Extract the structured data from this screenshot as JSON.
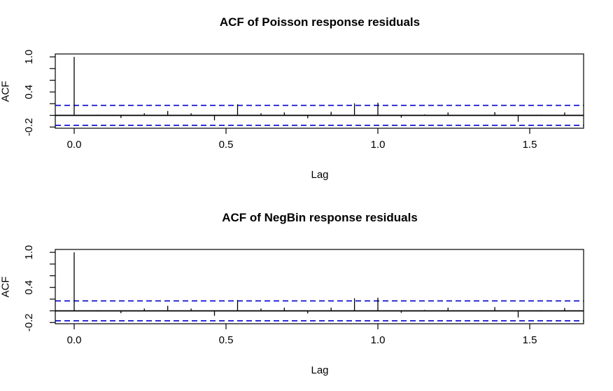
{
  "colors": {
    "foreground": "#000000",
    "conf_band": "#0000cc",
    "background": "#ffffff"
  },
  "chart_data": [
    {
      "type": "bar",
      "title": "ACF of Poisson response residuals",
      "xlabel": "Lag",
      "ylabel": "ACF",
      "xlim": [
        -0.065,
        1.68
      ],
      "ylim": [
        -0.22,
        1.05
      ],
      "grid": false,
      "conf_band": 0.17,
      "conf_band_style": "blue-dashed",
      "zero_line": 0,
      "x_ticks": [
        {
          "v": 0.0,
          "label": "0.0"
        },
        {
          "v": 0.5,
          "label": "0.5"
        },
        {
          "v": 1.0,
          "label": "1.0"
        },
        {
          "v": 1.5,
          "label": "1.5"
        }
      ],
      "y_ticks": [
        {
          "v": 1.0,
          "label": "1.0"
        },
        {
          "v": 0.8,
          "label": ""
        },
        {
          "v": 0.6,
          "label": ""
        },
        {
          "v": 0.4,
          "label": "0.4"
        },
        {
          "v": 0.2,
          "label": ""
        },
        {
          "v": 0.0,
          "label": ""
        },
        {
          "v": -0.2,
          "label": "-0.2"
        }
      ],
      "lags": [
        0,
        0.077,
        0.154,
        0.231,
        0.308,
        0.385,
        0.462,
        0.538,
        0.615,
        0.692,
        0.769,
        0.846,
        0.923,
        1.0,
        1.077,
        1.154,
        1.231,
        1.308,
        1.385,
        1.462,
        1.538,
        1.615
      ],
      "values": [
        1.0,
        0.01,
        -0.045,
        0.035,
        0.075,
        0.035,
        -0.085,
        0.19,
        0.035,
        0.05,
        -0.05,
        0.06,
        0.205,
        0.215,
        -0.04,
        0.015,
        0.05,
        0.005,
        0.055,
        -0.11,
        0.01,
        0.05
      ]
    },
    {
      "type": "bar",
      "title": "ACF of NegBin response residuals",
      "xlabel": "Lag",
      "ylabel": "ACF",
      "xlim": [
        -0.065,
        1.68
      ],
      "ylim": [
        -0.22,
        1.05
      ],
      "grid": false,
      "conf_band": 0.17,
      "conf_band_style": "blue-dashed",
      "zero_line": 0,
      "x_ticks": [
        {
          "v": 0.0,
          "label": "0.0"
        },
        {
          "v": 0.5,
          "label": "0.5"
        },
        {
          "v": 1.0,
          "label": "1.0"
        },
        {
          "v": 1.5,
          "label": "1.5"
        }
      ],
      "y_ticks": [
        {
          "v": 1.0,
          "label": "1.0"
        },
        {
          "v": 0.8,
          "label": ""
        },
        {
          "v": 0.6,
          "label": ""
        },
        {
          "v": 0.4,
          "label": "0.4"
        },
        {
          "v": 0.2,
          "label": ""
        },
        {
          "v": 0.0,
          "label": ""
        },
        {
          "v": -0.2,
          "label": "-0.2"
        }
      ],
      "lags": [
        0,
        0.077,
        0.154,
        0.231,
        0.308,
        0.385,
        0.462,
        0.538,
        0.615,
        0.692,
        0.769,
        0.846,
        0.923,
        1.0,
        1.077,
        1.154,
        1.231,
        1.308,
        1.385,
        1.462,
        1.538,
        1.615
      ],
      "values": [
        1.0,
        0.01,
        -0.04,
        0.04,
        0.085,
        0.04,
        -0.085,
        0.185,
        0.04,
        0.055,
        -0.045,
        0.055,
        0.215,
        0.225,
        -0.035,
        0.015,
        0.055,
        0.005,
        0.065,
        -0.115,
        0.01,
        0.05
      ]
    }
  ]
}
